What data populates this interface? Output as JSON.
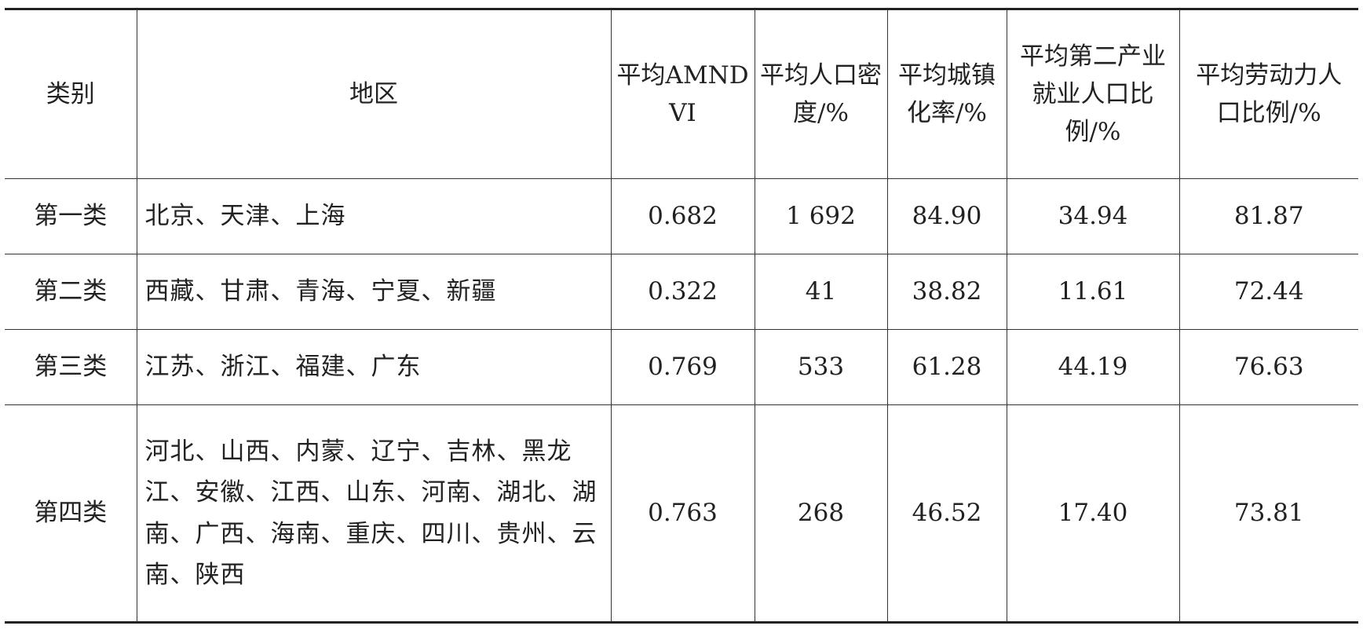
{
  "table": {
    "headers": [
      "类别",
      "地区",
      "平均AMNDVI",
      "平均人口密度/%",
      "平均城镇化率/%",
      "平均第二产业就业人口比例/%",
      "平均劳动力人口比例/%"
    ],
    "rows": [
      {
        "category": "第一类",
        "regions": "北京、天津、上海",
        "amndvi": "0.682",
        "density": "1 692",
        "urban": "84.90",
        "secondary": "34.94",
        "labor": "81.87"
      },
      {
        "category": "第二类",
        "regions": "西藏、甘肃、青海、宁夏、新疆",
        "amndvi": "0.322",
        "density": "41",
        "urban": "38.82",
        "secondary": "11.61",
        "labor": "72.44"
      },
      {
        "category": "第三类",
        "regions": "江苏、浙江、福建、广东",
        "amndvi": "0.769",
        "density": "533",
        "urban": "61.28",
        "secondary": "44.19",
        "labor": "76.63"
      },
      {
        "category": "第四类",
        "regions": "河北、山西、内蒙、辽宁、吉林、黑龙江、安徽、江西、山东、河南、湖北、湖南、广西、海南、重庆、四川、贵州、云南、陕西",
        "amndvi": "0.763",
        "density": "268",
        "urban": "46.52",
        "secondary": "17.40",
        "labor": "73.81"
      }
    ]
  }
}
